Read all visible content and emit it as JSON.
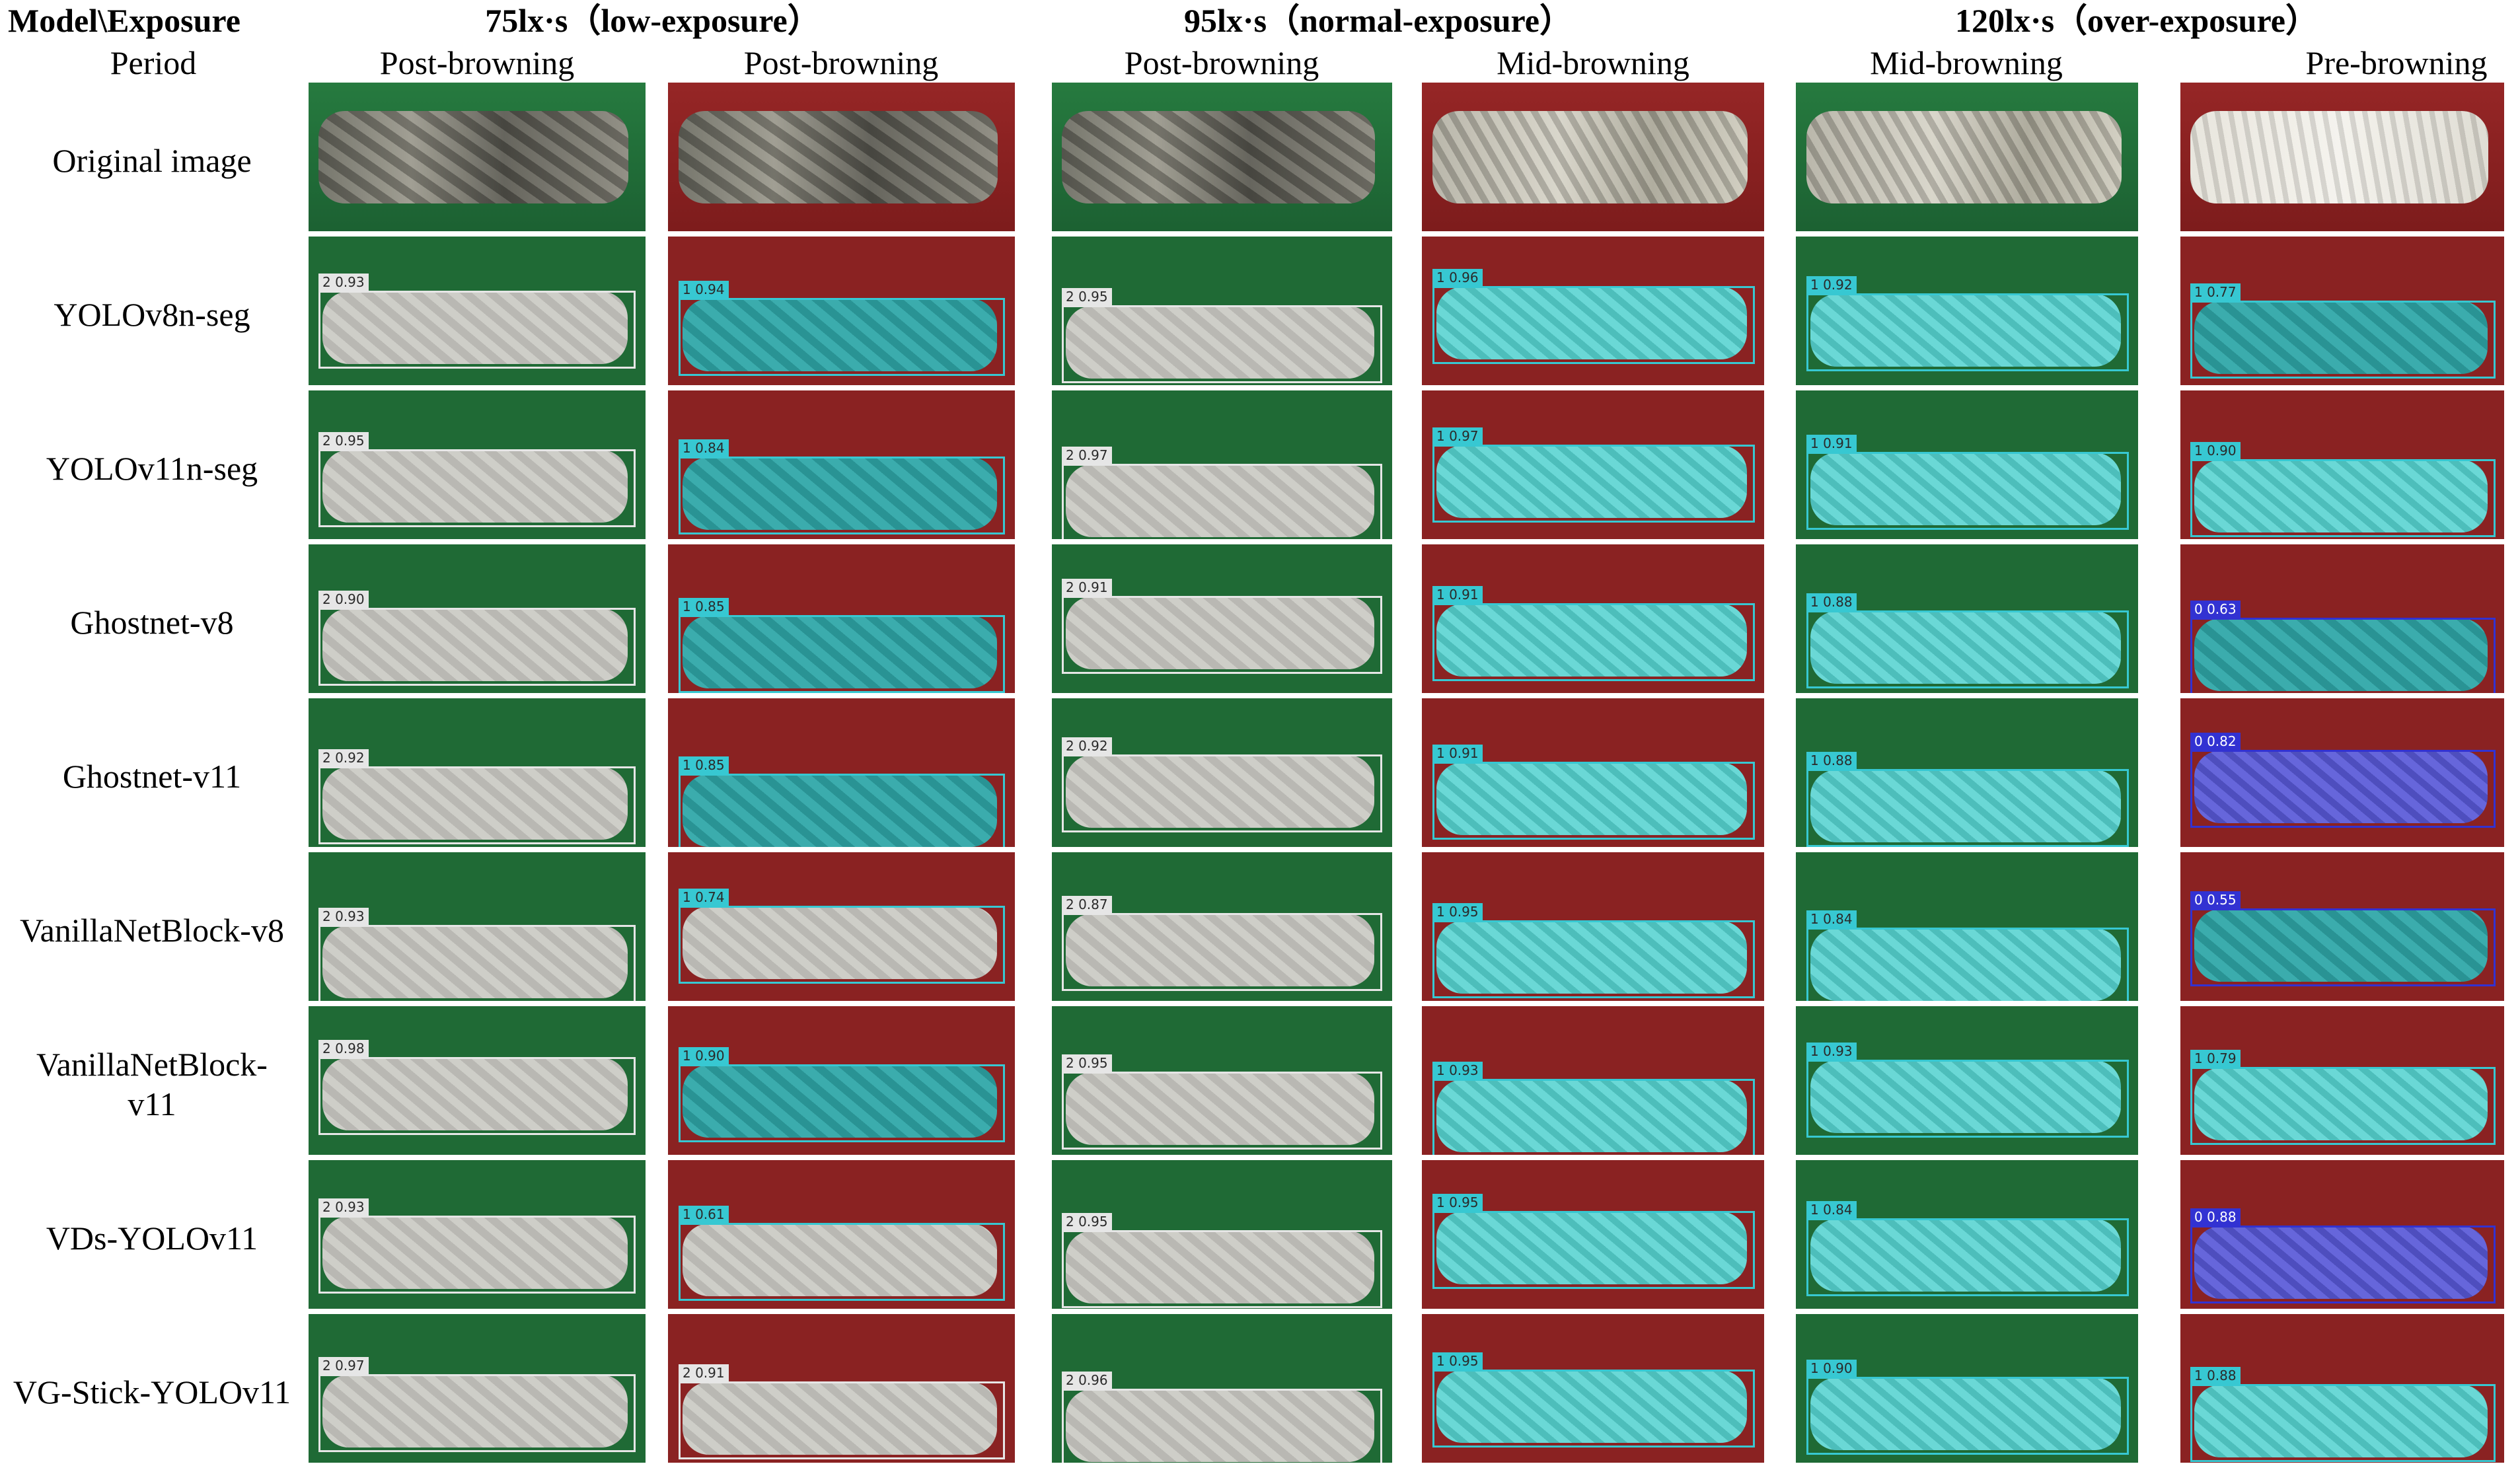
{
  "header": {
    "corner_title": "Model\\Exposure",
    "period_label": "Period",
    "exposures": [
      "75lx·s（low-exposure）",
      "95lx·s（normal-exposure）",
      "120lx·s（over-exposure）"
    ],
    "periods": [
      "Post-browning",
      "Post-browning",
      "Post-browning",
      "Mid-browning",
      "Mid-browning",
      "Pre-browning"
    ]
  },
  "column_backgrounds": [
    "green",
    "red",
    "green",
    "red",
    "green",
    "red"
  ],
  "original_textures": [
    "dark",
    "dark",
    "dark",
    "mid",
    "mid",
    "light"
  ],
  "colors": {
    "class_2_box": "#e6e6e6",
    "class_1_box": "#37c8d2",
    "class_0_box": "#3232d2",
    "green_background": "#1f6a35",
    "red_background": "#8a2222"
  },
  "rows": [
    {
      "label": "Original image",
      "cells": []
    },
    {
      "label": "YOLOv8n-seg",
      "cells": [
        {
          "tag": "2 0.93",
          "mask": "gray"
        },
        {
          "tag": "1 0.94",
          "mask": "teal"
        },
        {
          "tag": "2 0.95",
          "mask": "gray"
        },
        {
          "tag": "1 0.96",
          "mask": "cyan"
        },
        {
          "tag": "1 0.92",
          "mask": "cyan"
        },
        {
          "tag": "1 0.77",
          "mask": "teal"
        }
      ]
    },
    {
      "label": "YOLOv11n-seg",
      "cells": [
        {
          "tag": "2 0.95",
          "mask": "gray"
        },
        {
          "tag": "1 0.84",
          "mask": "teal"
        },
        {
          "tag": "2 0.97",
          "mask": "gray"
        },
        {
          "tag": "1 0.97",
          "mask": "cyan"
        },
        {
          "tag": "1 0.91",
          "mask": "cyan"
        },
        {
          "tag": "1 0.90",
          "mask": "cyan"
        }
      ]
    },
    {
      "label": "Ghostnet-v8",
      "cells": [
        {
          "tag": "2 0.90",
          "mask": "gray"
        },
        {
          "tag": "1 0.85",
          "mask": "teal"
        },
        {
          "tag": "2 0.91",
          "mask": "gray"
        },
        {
          "tag": "1 0.91",
          "mask": "cyan"
        },
        {
          "tag": "1 0.88",
          "mask": "cyan"
        },
        {
          "tag": "0 0.63",
          "mask": "teal"
        }
      ]
    },
    {
      "label": "Ghostnet-v11",
      "cells": [
        {
          "tag": "2 0.92",
          "mask": "gray"
        },
        {
          "tag": "1 0.85",
          "mask": "teal"
        },
        {
          "tag": "2 0.92",
          "mask": "gray"
        },
        {
          "tag": "1 0.91",
          "mask": "cyan"
        },
        {
          "tag": "1 0.88",
          "mask": "cyan"
        },
        {
          "tag": "0 0.82",
          "mask": "purple"
        }
      ]
    },
    {
      "label": "VanillaNetBlock-v8",
      "cells": [
        {
          "tag": "2 0.93",
          "mask": "gray"
        },
        {
          "tag": "1 0.74",
          "mask": "gray"
        },
        {
          "tag": "2 0.87",
          "mask": "gray"
        },
        {
          "tag": "1 0.95",
          "mask": "cyan"
        },
        {
          "tag": "1 0.84",
          "mask": "cyan"
        },
        {
          "tag": "0 0.55",
          "mask": "teal"
        }
      ]
    },
    {
      "label": "VanillaNetBlock-\nv11",
      "cells": [
        {
          "tag": "2 0.98",
          "mask": "gray"
        },
        {
          "tag": "1 0.90",
          "mask": "teal"
        },
        {
          "tag": "2 0.95",
          "mask": "gray"
        },
        {
          "tag": "1 0.93",
          "mask": "cyan"
        },
        {
          "tag": "1 0.93",
          "mask": "cyan"
        },
        {
          "tag": "1 0.79",
          "mask": "cyan"
        }
      ]
    },
    {
      "label": "VDs-YOLOv11",
      "cells": [
        {
          "tag": "2 0.93",
          "mask": "gray"
        },
        {
          "tag": "1 0.61",
          "mask": "gray"
        },
        {
          "tag": "2 0.95",
          "mask": "gray"
        },
        {
          "tag": "1 0.95",
          "mask": "cyan"
        },
        {
          "tag": "1 0.84",
          "mask": "cyan"
        },
        {
          "tag": "0 0.88",
          "mask": "purple"
        }
      ]
    },
    {
      "label": "VG-Stick-YOLOv11",
      "cells": [
        {
          "tag": "2 0.97",
          "mask": "gray"
        },
        {
          "tag": "2 0.91",
          "mask": "gray"
        },
        {
          "tag": "2 0.96",
          "mask": "gray"
        },
        {
          "tag": "1 0.95",
          "mask": "cyan"
        },
        {
          "tag": "1 0.90",
          "mask": "cyan"
        },
        {
          "tag": "1 0.88",
          "mask": "cyan"
        }
      ]
    }
  ]
}
